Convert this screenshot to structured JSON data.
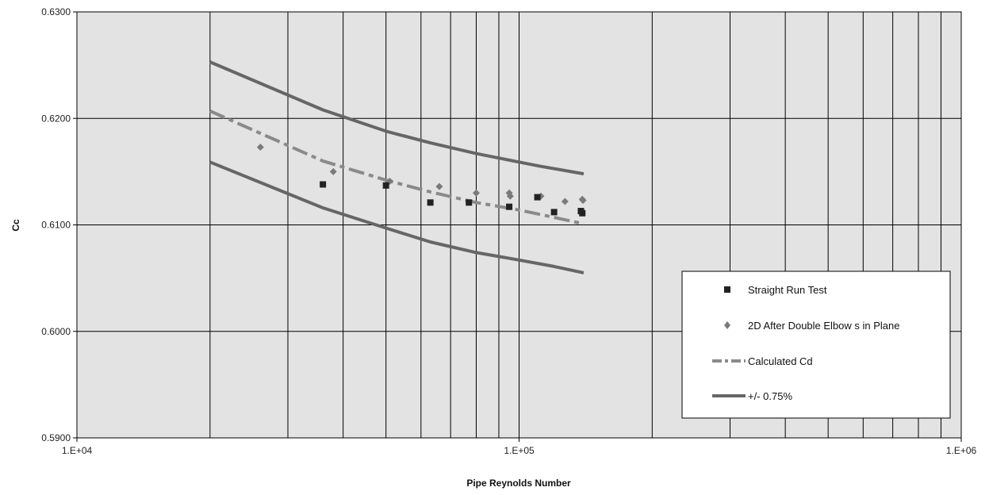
{
  "chart_data": {
    "type": "scatter",
    "title": "",
    "xlabel": "Pipe Reynolds Number",
    "ylabel": "Cc",
    "x_scale": "log",
    "xlim": [
      10000,
      1000000
    ],
    "ylim": [
      0.59,
      0.63
    ],
    "grid": true,
    "x_tick_labels": [
      "1.E+04",
      "1.E+05",
      "1.E+06"
    ],
    "y_tick_labels": [
      "0.5900",
      "0.6000",
      "0.6100",
      "0.6200",
      "0.6300"
    ],
    "legend_position": "bottom-right",
    "plot_background": "#e3e3e3",
    "series": [
      {
        "name": "Straight Run Test",
        "kind": "marker",
        "marker": "square",
        "color": "#222222",
        "x": [
          36000,
          50000,
          63000,
          77000,
          95000,
          110000,
          120000,
          138000,
          139000
        ],
        "y": [
          0.6138,
          0.6137,
          0.6121,
          0.6121,
          0.6117,
          0.6126,
          0.6112,
          0.6113,
          0.6111
        ]
      },
      {
        "name": "2D After Double Elbow s in Plane",
        "kind": "marker",
        "marker": "diamond",
        "color": "#7a7a7a",
        "x": [
          26000,
          38000,
          51000,
          66000,
          80000,
          95000,
          95500,
          112000,
          127000,
          139000,
          139500
        ],
        "y": [
          0.6173,
          0.615,
          0.6141,
          0.6136,
          0.613,
          0.613,
          0.6127,
          0.6127,
          0.6122,
          0.6124,
          0.6123
        ]
      },
      {
        "name": "Calculated Cd",
        "kind": "line",
        "dash": "dashdot",
        "color": "#8a8a8a",
        "x": [
          20000,
          36000,
          50000,
          63000,
          80000,
          100000,
          120000,
          140000
        ],
        "y": [
          0.6207,
          0.616,
          0.6142,
          0.6131,
          0.6121,
          0.6114,
          0.6107,
          0.6101
        ]
      },
      {
        "name": "+/- 0.75%",
        "kind": "line",
        "dash": "solid",
        "color": "#666666",
        "x": [
          20000,
          36000,
          50000,
          63000,
          80000,
          100000,
          112000,
          140000
        ],
        "y": [
          0.6253,
          0.6208,
          0.6188,
          0.6177,
          0.6167,
          0.6159,
          0.6155,
          0.6148
        ]
      },
      {
        "name": "",
        "kind": "line",
        "dash": "solid",
        "color": "#666666",
        "x": [
          20000,
          36000,
          50000,
          63000,
          80000,
          100000,
          120000,
          140000
        ],
        "y": [
          0.6159,
          0.6116,
          0.6097,
          0.6084,
          0.6074,
          0.6067,
          0.6061,
          0.6055
        ]
      }
    ]
  }
}
